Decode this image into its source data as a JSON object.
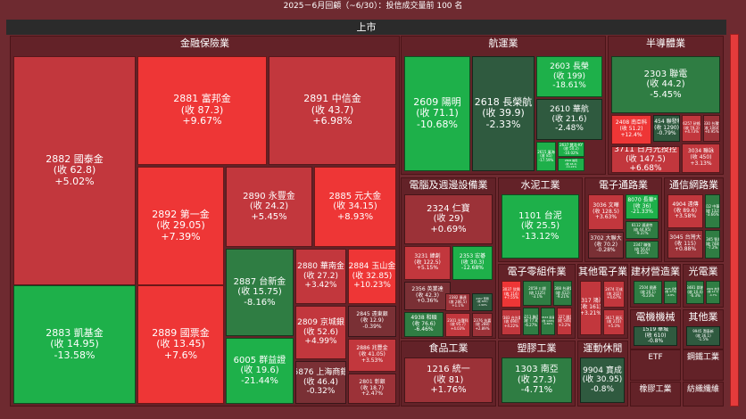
{
  "page": {
    "title": "2025－6月回顧（~6/30）：投信成交量前 100 名",
    "market_label": "上市"
  },
  "colors": {
    "up_strong": "#ee3636",
    "up_mid": "#c2373d",
    "up_weak": "#9c3238",
    "flat": "#7a3035",
    "down_weak": "#2f5a3f",
    "down_mid": "#2f7d43",
    "down_strong": "#1eb04a",
    "background": "#6e2a30"
  },
  "chart_data": {
    "type": "treemap",
    "sectors": [
      {
        "name": "金融保險業",
        "tiles": [
          {
            "code": "2882",
            "name": "國泰金",
            "close": "收 62.8",
            "change": "+5.02%",
            "pct": 5.02
          },
          {
            "code": "2881",
            "name": "富邦金",
            "close": "收 87.3",
            "change": "+9.67%",
            "pct": 9.67
          },
          {
            "code": "2891",
            "name": "中信金",
            "close": "收 43.7",
            "change": "+6.98%",
            "pct": 6.98
          },
          {
            "code": "2892",
            "name": "第一金",
            "close": "收 29.05",
            "change": "+7.39%",
            "pct": 7.39
          },
          {
            "code": "2890",
            "name": "永豐金",
            "close": "收 24.2",
            "change": "+5.45%",
            "pct": 5.45
          },
          {
            "code": "2885",
            "name": "元大金",
            "close": "收 34.15",
            "change": "+8.93%",
            "pct": 8.93
          },
          {
            "code": "2883",
            "name": "凱基金",
            "close": "收 14.95",
            "change": "-13.58%",
            "pct": -13.58
          },
          {
            "code": "2889",
            "name": "國票金",
            "close": "收 13.45",
            "change": "+7.6%",
            "pct": 7.6
          },
          {
            "code": "2887",
            "name": "台新金",
            "close": "收 15.75",
            "change": "-8.16%",
            "pct": -8.16
          },
          {
            "code": "2880",
            "name": "華南金",
            "close": "收 27.2",
            "change": "+3.42%",
            "pct": 3.42
          },
          {
            "code": "2884",
            "name": "玉山金",
            "close": "收 32.85",
            "change": "+10.23%",
            "pct": 10.23
          },
          {
            "code": "2809",
            "name": "京城銀",
            "close": "收 52.6",
            "change": "+4.99%",
            "pct": 4.99
          },
          {
            "code": "2845",
            "name": "遠東銀",
            "close": "收 12.9",
            "change": "-0.39%",
            "pct": -0.39
          },
          {
            "code": "6005",
            "name": "群益證",
            "close": "收 19.6",
            "change": "-21.44%",
            "pct": -21.44
          },
          {
            "code": "2886",
            "name": "兆豐金",
            "close": "收 41.05",
            "change": "+3.53%",
            "pct": 3.53
          },
          {
            "code": "5876",
            "name": "上海商銀",
            "close": "收 46.4",
            "change": "-0.32%",
            "pct": -0.32
          },
          {
            "code": "2801",
            "name": "彰銀",
            "close": "收 18.7",
            "change": "+2.47%",
            "pct": 2.47
          }
        ]
      },
      {
        "name": "航運業",
        "tiles": [
          {
            "code": "2609",
            "name": "陽明",
            "close": "收 71.1",
            "change": "-10.68%",
            "pct": -10.68
          },
          {
            "code": "2618",
            "name": "長榮航",
            "close": "收 39.9",
            "change": "-2.33%",
            "pct": -2.33
          },
          {
            "code": "2603",
            "name": "長榮",
            "close": "收 199",
            "change": "-18.61%",
            "pct": -18.61
          },
          {
            "code": "2610",
            "name": "華航",
            "close": "收 21.6",
            "change": "-2.48%",
            "pct": -2.48
          },
          {
            "code": "2615",
            "name": "萬海",
            "close": "收 85",
            "change": "-17.59%",
            "pct": -17.59
          },
          {
            "code": "2637",
            "name": "慧洋-KY",
            "close": "收 50.2",
            "change": "-10.02%",
            "pct": -10.02
          },
          {
            "code": "2606",
            "name": "裕民",
            "close": "收 48.4",
            "change": "-14.24%",
            "pct": -14.24
          }
        ]
      },
      {
        "name": "半導體業",
        "tiles": [
          {
            "code": "2303",
            "name": "聯電",
            "close": "收 44.2",
            "change": "-5.45%",
            "pct": -5.45
          },
          {
            "code": "2408",
            "name": "南亞科",
            "close": "收 51.2",
            "change": "+12.4%",
            "pct": 12.4
          },
          {
            "code": "2454",
            "name": "聯發科",
            "close": "收 1290",
            "change": "-0.79%",
            "pct": -0.79
          },
          {
            "code": "6257",
            "name": "矽格",
            "close": "收 79.3",
            "change": "+4.73%",
            "pct": 4.73
          },
          {
            "code": "2330",
            "name": "台積電",
            "close": "收 1060",
            "change": "+0.95%",
            "pct": 0.95
          },
          {
            "code": "3711",
            "name": "日月光投控",
            "close": "收 147.5",
            "change": "+6.68%",
            "pct": 6.68
          },
          {
            "code": "3034",
            "name": "聯詠",
            "close": "收 450",
            "change": "+3.13%",
            "pct": 3.13
          }
        ]
      },
      {
        "name": "電腦及週邊設備業",
        "tiles": [
          {
            "code": "2324",
            "name": "仁寶",
            "close": "收 29",
            "change": "+0.69%",
            "pct": 0.69
          },
          {
            "code": "3231",
            "name": "緯創",
            "close": "收 122.5",
            "change": "+5.15%",
            "pct": 5.15
          },
          {
            "code": "2353",
            "name": "宏碁",
            "close": "收 30.3",
            "change": "-12.68%",
            "pct": -12.68
          },
          {
            "code": "2356",
            "name": "英業達",
            "close": "收 42.3",
            "change": "+0.36%",
            "pct": 0.36
          },
          {
            "code": "2382",
            "name": "廣達",
            "close": "收 286.5",
            "change": "+1.1%",
            "pct": 1.1
          },
          {
            "code": "2357",
            "name": "華碩",
            "close": "收 644",
            "change": "-1.99%",
            "pct": -1.99
          },
          {
            "code": "4938",
            "name": "和碩",
            "close": "收 76.6",
            "change": "-6.46%",
            "pct": -6.46
          },
          {
            "code": "2301",
            "name": "光寶科",
            "close": "收 95.7",
            "change": "+4.03%",
            "pct": 4.03
          },
          {
            "code": "2376",
            "name": "技嘉",
            "close": "收 288",
            "change": "+2.89%",
            "pct": 2.89
          }
        ]
      },
      {
        "name": "水泥工業",
        "tiles": [
          {
            "code": "1101",
            "name": "台泥",
            "close": "收 25.5",
            "change": "-13.12%",
            "pct": -13.12
          }
        ]
      },
      {
        "name": "電子通路業",
        "tiles": [
          {
            "code": "3036",
            "name": "文曄",
            "close": "收 128.5",
            "change": "+3.63%",
            "pct": 3.63
          },
          {
            "code": "8070",
            "name": "長華*",
            "close": "收 36",
            "change": "-21.33%",
            "pct": -21.33
          },
          {
            "code": "3702",
            "name": "大聯大",
            "close": "收 70.2",
            "change": "-0.28%",
            "pct": -0.28
          },
          {
            "code": "6112",
            "name": "邁達特",
            "close": "收 44.95",
            "change": "-9.37%",
            "pct": -9.37
          },
          {
            "code": "2347",
            "name": "聯強",
            "close": "收 56.6",
            "change": "-8.55%",
            "pct": -8.55
          }
        ]
      },
      {
        "name": "通信網路業",
        "tiles": [
          {
            "code": "4904",
            "name": "遠傳",
            "close": "收 89.6",
            "change": "+3.58%",
            "pct": 3.58
          },
          {
            "code": "2412",
            "name": "中華電",
            "close": "收 132",
            "change": "-3.66%",
            "pct": -3.66
          },
          {
            "code": "3045",
            "name": "台灣大",
            "close": "收 115",
            "change": "+0.88%",
            "pct": 0.88
          },
          {
            "code": "2345",
            "name": "智邦",
            "close": "收 748",
            "change": "-7.2%",
            "pct": -7.2
          }
        ]
      },
      {
        "name": "電子零組件業",
        "tiles": [
          {
            "code": "3037",
            "name": "欣興",
            "close": "收 114",
            "change": "+7.55%",
            "pct": 7.55
          },
          {
            "code": "2059",
            "name": "川湖",
            "close": "收 1125",
            "change": "-3.1%",
            "pct": -3.1
          },
          {
            "code": "2308",
            "name": "台達電",
            "close": "收 412",
            "change": "-9.21%",
            "pct": -9.21
          },
          {
            "code": "2383",
            "name": "台光電",
            "close": "收 690",
            "change": "+4.22%",
            "pct": 4.22
          },
          {
            "code": "6213",
            "name": "聯茂",
            "close": "收 77.8",
            "change": "-6.27%",
            "pct": -6.27
          },
          {
            "code": "3533",
            "name": "嘉澤",
            "close": "收 1265",
            "change": "-4.89%",
            "pct": -4.89
          },
          {
            "code": "2327",
            "name": "國巨",
            "close": "收 546",
            "change": "+3.2%",
            "pct": 3.2
          }
        ]
      },
      {
        "name": "其他電子業",
        "tiles": [
          {
            "code": "2317",
            "name": "鴻海",
            "close": "收 161",
            "change": "+3.21%",
            "pct": 3.21
          },
          {
            "code": "2474",
            "name": "可成",
            "close": "收 202",
            "change": "+4.67%",
            "pct": 4.67
          },
          {
            "code": "3617",
            "name": "碩天",
            "close": "收 210",
            "change": "+5.3%",
            "pct": 5.3
          }
        ]
      },
      {
        "name": "建材營造業",
        "tiles": [
          {
            "code": "2504",
            "name": "國產",
            "close": "收 20.1",
            "change": "-6.23%",
            "pct": -6.23
          },
          {
            "code": "2545",
            "name": "皇翔",
            "close": "收 37.6",
            "change": "-4.8%",
            "pct": -4.8
          }
        ]
      },
      {
        "name": "光電業",
        "tiles": [
          {
            "code": "3481",
            "name": "群創",
            "close": "收 10.4",
            "change": "-6.3%",
            "pct": -6.3
          },
          {
            "code": "2409",
            "name": "友達",
            "close": "收 12.1",
            "change": "-4.7%",
            "pct": -4.7
          }
        ]
      },
      {
        "name": "電機機械",
        "tiles": [
          {
            "code": "1519",
            "name": "華城",
            "close": "收 610",
            "change": "-0.8%",
            "pct": -0.8
          }
        ]
      },
      {
        "name": "其他業",
        "tiles": [
          {
            "code": "9945",
            "name": "潤泰新",
            "close": "收 36.1",
            "change": "-1.5%",
            "pct": -1.5
          }
        ]
      },
      {
        "name": "食品工業",
        "tiles": [
          {
            "code": "1216",
            "name": "統一",
            "close": "收 81",
            "change": "+1.76%",
            "pct": 1.76
          }
        ]
      },
      {
        "name": "塑膠工業",
        "tiles": [
          {
            "code": "1303",
            "name": "南亞",
            "close": "收 27.3",
            "change": "-4.71%",
            "pct": -4.71
          }
        ]
      },
      {
        "name": "運動休閒",
        "tiles": [
          {
            "code": "9904",
            "name": "寶成",
            "close": "收 30.95",
            "change": "-0.8%",
            "pct": -0.8
          }
        ]
      },
      {
        "name": "ETF",
        "tiles": []
      },
      {
        "name": "鋼鐵工業",
        "tiles": []
      },
      {
        "name": "橡膠工業",
        "tiles": []
      },
      {
        "name": "紡織纖維",
        "tiles": []
      }
    ]
  }
}
